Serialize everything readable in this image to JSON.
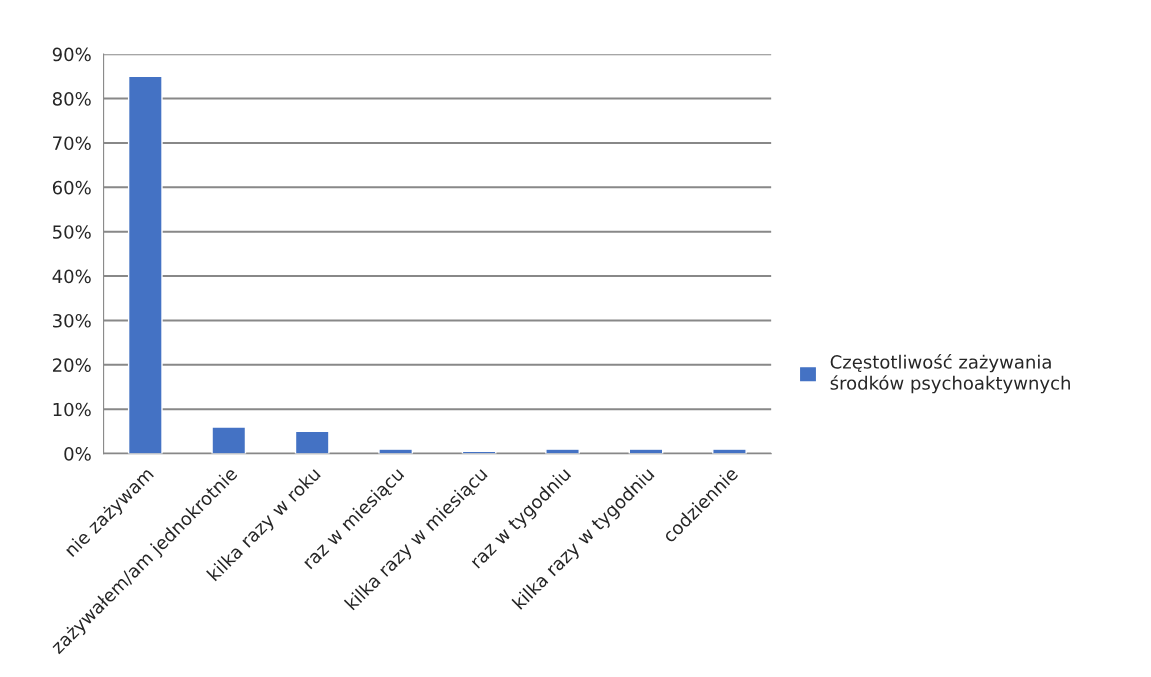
{
  "chart_data": {
    "type": "bar",
    "categories": [
      "nie zażywam",
      "zażywałem/am jednokrotnie",
      "kilka razy w roku",
      "raz w miesiącu",
      "kilka razy w miesiącu",
      "raz w tygodniu",
      "kilka razy w tygodniu",
      "codziennie"
    ],
    "series": [
      {
        "name": "Częstotliwość zażywania\nśrodków psychoaktywnych",
        "color": "#4472c4",
        "values": [
          85,
          6,
          5,
          1,
          0.5,
          1,
          1,
          1
        ]
      }
    ],
    "ylim": [
      0,
      90
    ],
    "yticks": [
      {
        "value": 0,
        "label": "0%"
      },
      {
        "value": 10,
        "label": "10%"
      },
      {
        "value": 20,
        "label": "20%"
      },
      {
        "value": 30,
        "label": "30%"
      },
      {
        "value": 40,
        "label": "40%"
      },
      {
        "value": 50,
        "label": "50%"
      },
      {
        "value": 60,
        "label": "60%"
      },
      {
        "value": 70,
        "label": "70%"
      },
      {
        "value": 80,
        "label": "80%"
      },
      {
        "value": 90,
        "label": "90%"
      }
    ],
    "grid": "y",
    "legend": "right"
  }
}
